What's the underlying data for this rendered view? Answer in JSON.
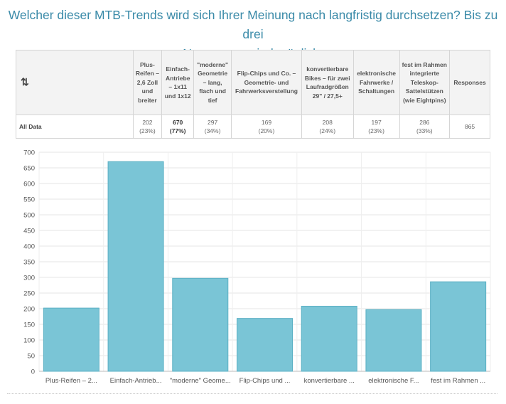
{
  "title_lines": [
    "Welcher dieser MTB-Trends wird sich Ihrer Meinung nach langfristig durchsetzen? Bis zu drei",
    "Nennungen sind möglich."
  ],
  "table": {
    "corner_icon": "swap-arrows-icon",
    "columns": [
      "Plus-Reifen – 2,6 Zoll und breiter",
      "Einfach-Antriebe – 1x11 und 1x12",
      "\"moderne\" Geometrie – lang, flach und tief",
      "Flip-Chips und Co. – Geometrie- und Fahrwerksverstellung",
      "konvertierbare Bikes – für zwei Laufradgrößen 29\" / 27,5+",
      "elektronische Fahrwerke / Schaltungen",
      "fest im Rahmen integrierte Teleskop-Sattelstützen (wie Eightpins)",
      "Responses"
    ],
    "row": {
      "label": "All Data",
      "cells": [
        {
          "count": "202",
          "pct": "(23%)"
        },
        {
          "count": "670",
          "pct": "(77%)"
        },
        {
          "count": "297",
          "pct": "(34%)"
        },
        {
          "count": "169",
          "pct": "(20%)"
        },
        {
          "count": "208",
          "pct": "(24%)"
        },
        {
          "count": "197",
          "pct": "(23%)"
        },
        {
          "count": "286",
          "pct": "(33%)"
        },
        {
          "count": "865",
          "pct": ""
        }
      ]
    }
  },
  "chart_data": {
    "type": "bar",
    "categories": [
      "Plus-Reifen – 2...",
      "Einfach-Antrieb...",
      "\"moderne\" Geome...",
      "Flip-Chips und ...",
      "konvertierbare ...",
      "elektronische F...",
      "fest im Rahmen ..."
    ],
    "values": [
      202,
      670,
      297,
      169,
      208,
      197,
      286
    ],
    "ylim": [
      0,
      700
    ],
    "yticks": [
      0,
      50,
      100,
      150,
      200,
      250,
      300,
      350,
      400,
      450,
      500,
      550,
      600,
      650,
      700
    ],
    "grid": true,
    "bar_color": "#7ac5d6",
    "bar_edge_color": "#5bb0c4"
  }
}
